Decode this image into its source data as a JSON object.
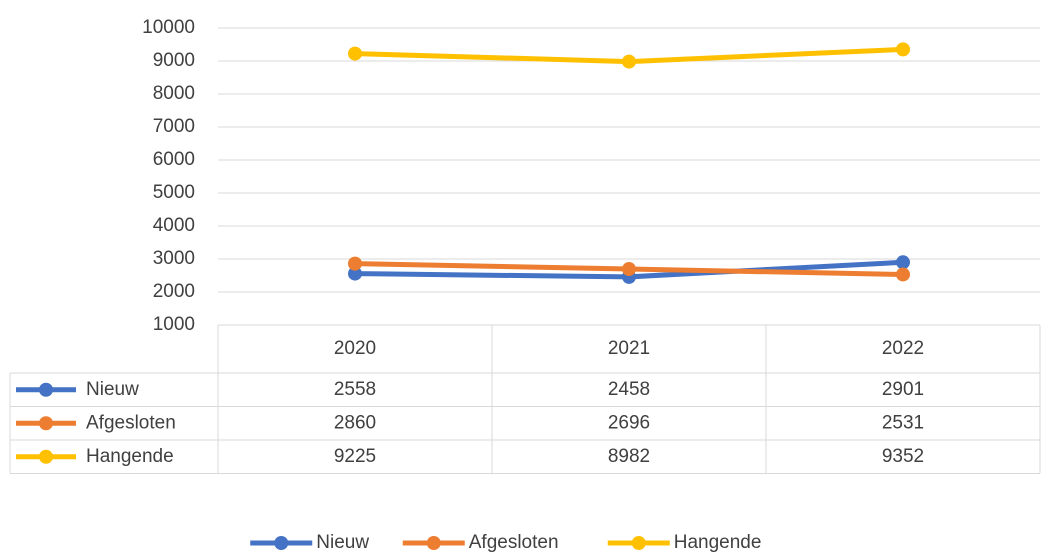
{
  "chart_data": {
    "type": "line",
    "categories": [
      "2020",
      "2021",
      "2022"
    ],
    "series": [
      {
        "name": "Nieuw",
        "color": "#4472c4",
        "values": [
          2558,
          2458,
          2901
        ]
      },
      {
        "name": "Afgesloten",
        "color": "#ed7d31",
        "values": [
          2860,
          2696,
          2531
        ]
      },
      {
        "name": "Hangende",
        "color": "#ffc000",
        "values": [
          9225,
          8982,
          9352
        ]
      }
    ],
    "ylim": [
      1000,
      10000
    ],
    "yticks": [
      1000,
      2000,
      3000,
      4000,
      5000,
      6000,
      7000,
      8000,
      9000,
      10000
    ],
    "grid": true,
    "data_table": true,
    "legend": "bottom"
  }
}
